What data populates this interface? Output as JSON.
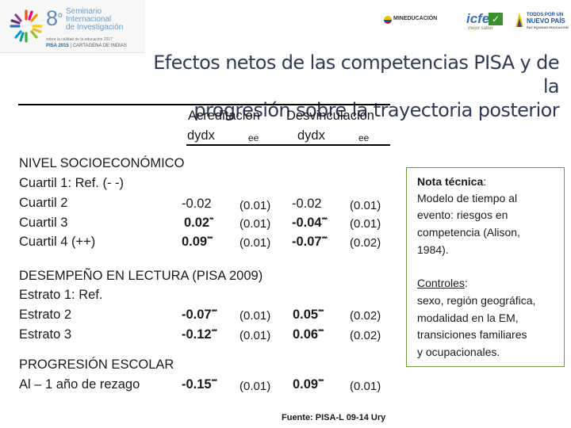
{
  "header": {
    "seminar_number": "8",
    "seminar_number_suffix": "o",
    "seminar_lines": [
      "Seminario",
      "Internacional",
      "de Investigación"
    ],
    "seminar_subtitle": "sobre la calidad de la educación 2017",
    "pisa_label": "PISA 2015",
    "pisa_city": "CARTAGENA DE INDIAS",
    "ministry": "MINEDUCACIÓN",
    "icfes": "icfes",
    "icfes_sub": "mejor saber",
    "todos_lines": [
      "TODOS POR UN",
      "NUEVO PAÍS",
      "PAZ EQUIDAD EDUCACIÓN"
    ]
  },
  "title_lines": [
    "Efectos netos de las competencias PISA y de la",
    "progresión sobre la trayectoria posterior"
  ],
  "table": {
    "col_groups": [
      "Acreditación",
      "Desvinculación"
    ],
    "sub_cols": [
      "dydx",
      "ee",
      "dydx",
      "ee"
    ],
    "sections": [
      {
        "heading": "NIVEL SOCIOECONÓMICO",
        "rows": [
          {
            "label": "Cuartil 1: Ref. (- -)",
            "a_dydx": "",
            "a_stars": "",
            "a_ee": "",
            "d_dydx": "",
            "d_stars": "",
            "d_ee": ""
          },
          {
            "label": "Cuartil 2",
            "a_dydx": "-0.02",
            "a_stars": "",
            "a_ee": "(0.01)",
            "d_dydx": "-0.02",
            "d_stars": "",
            "d_ee": "(0.01)"
          },
          {
            "label": "Cuartil 3",
            "a_dydx": "0.02",
            "a_stars": "**",
            "a_ee": "(0.01)",
            "d_dydx": "-0.04",
            "d_stars": "***",
            "d_ee": "(0.01)"
          },
          {
            "label": "Cuartil 4 (++)",
            "a_dydx": "0.09",
            "a_stars": "***",
            "a_ee": "(0.01)",
            "d_dydx": "-0.07",
            "d_stars": "***",
            "d_ee": "(0.02)"
          }
        ]
      },
      {
        "heading": "DESEMPEÑO EN LECTURA (PISA 2009)",
        "rows": [
          {
            "label": "Estrato 1: Ref.",
            "a_dydx": "",
            "a_stars": "",
            "a_ee": "",
            "d_dydx": "",
            "d_stars": "",
            "d_ee": ""
          },
          {
            "label": "Estrato 2",
            "a_dydx": "-0.07",
            "a_stars": "***",
            "a_ee": "(0.01)",
            "d_dydx": "0.05",
            "d_stars": "***",
            "d_ee": "(0.02)"
          },
          {
            "label": "Estrato 3",
            "a_dydx": "-0.12",
            "a_stars": "***",
            "a_ee": "(0.01)",
            "d_dydx": "0.06",
            "d_stars": "***",
            "d_ee": "(0.02)"
          }
        ]
      },
      {
        "heading": "PROGRESIÓN ESCOLAR",
        "rows": [
          {
            "label": "Al – 1 año de rezago",
            "a_dydx": "-0.15",
            "a_stars": "***",
            "a_ee": "(0.01)",
            "d_dydx": "0.09",
            "d_stars": "***",
            "d_ee": "(0.01)"
          }
        ]
      }
    ],
    "source": "Fuente: PISA-L 09-14 Ury"
  },
  "note": {
    "tech_label": "Nota técnica",
    "tech_colon": ":",
    "tech_lines": [
      "Modelo de tiempo al",
      "evento: riesgos en",
      "competencia (Alison,",
      "1984)."
    ],
    "controls_label": "Controles",
    "controls_colon": ":",
    "controls_lines": [
      "sexo, región geográfica,",
      "modalidad en la EM,",
      "transiciones familiares",
      "y ocupacionales."
    ]
  },
  "colors": {
    "title": "#2f3a56",
    "note_border": "#6a9a3a",
    "seminar_blue": "#5a8bb6"
  }
}
